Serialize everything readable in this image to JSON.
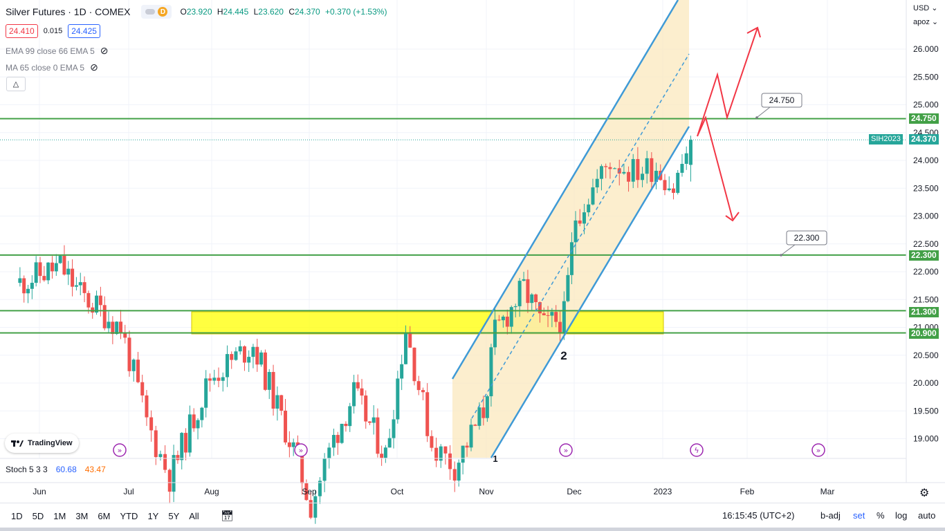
{
  "header": {
    "title": "Silver Futures · 1D · COMEX",
    "open_label": "O",
    "open": "23.920",
    "high_label": "H",
    "high": "24.445",
    "low_label": "L",
    "low": "23.620",
    "close_label": "C",
    "close": "24.370",
    "change": "+0.370 (+1.53%)",
    "pill_letter": "D",
    "bid": "24.410",
    "spread": "0.015",
    "ask": "24.425"
  },
  "indicators": {
    "ema": "EMA 99 close 66 EMA 5",
    "ma": "MA 65 close 0 EMA 5",
    "stoch_label": "Stoch 5 3 3",
    "stoch_k": "60.68",
    "stoch_d": "43.47"
  },
  "axis": {
    "currency": "USD",
    "unit": "apoz"
  },
  "tags": {
    "symbol": "SIH2023",
    "last_price": "24.370",
    "levels": [
      "24.750",
      "22.300",
      "21.300",
      "20.900"
    ]
  },
  "annotations": {
    "callout_upper": "24.750",
    "callout_lower": "22.300",
    "wave_label": "2",
    "wave_label_1": "1"
  },
  "logo_text": "TradingView",
  "toolbar": {
    "timeframes": [
      "1D",
      "5D",
      "1M",
      "3M",
      "6M",
      "YTD",
      "1Y",
      "5Y",
      "All"
    ],
    "clock": "16:15:45 (UTC+2)",
    "badj": "b-adj",
    "set": "set",
    "percent": "%",
    "log": "log",
    "auto": "auto"
  },
  "colors": {
    "up": "#26a69a",
    "down": "#ef5350",
    "level": "#43a047",
    "channel": "#3f9ad6",
    "arrow": "#f23645",
    "zone": "#ffff00"
  },
  "chart_data": {
    "type": "candlestick",
    "title": "Silver Futures · 1D · COMEX",
    "y_ticks": [
      "26.000",
      "25.500",
      "25.000",
      "24.500",
      "24.000",
      "23.500",
      "23.000",
      "22.500",
      "22.000",
      "21.500",
      "21.000",
      "20.500",
      "20.000",
      "19.500",
      "19.000"
    ],
    "x_ticks": [
      "Jun",
      "Jul",
      "Aug",
      "Sep",
      "Oct",
      "Nov",
      "Dec",
      "2023",
      "Feb",
      "Mar"
    ],
    "y_range": [
      18.6,
      26.6
    ],
    "horizontal_levels": [
      24.75,
      22.3,
      21.3,
      20.9
    ],
    "support_zone": [
      20.9,
      21.3
    ],
    "last_price": 24.37,
    "ohlc_anchors": [
      {
        "date": "2022-05-23",
        "close": 21.8
      },
      {
        "date": "2022-06-06",
        "close": 22.1
      },
      {
        "date": "2022-06-13",
        "close": 21.6
      },
      {
        "date": "2022-06-27",
        "close": 21.0
      },
      {
        "date": "2022-07-06",
        "close": 19.3
      },
      {
        "date": "2022-07-14",
        "close": 18.3
      },
      {
        "date": "2022-07-28",
        "close": 20.1
      },
      {
        "date": "2022-08-12",
        "close": 20.7
      },
      {
        "date": "2022-08-26",
        "close": 18.8
      },
      {
        "date": "2022-09-01",
        "close": 17.8
      },
      {
        "date": "2022-09-09",
        "close": 19.0
      },
      {
        "date": "2022-09-16",
        "close": 19.8
      },
      {
        "date": "2022-09-27",
        "close": 18.7
      },
      {
        "date": "2022-10-04",
        "close": 21.0
      },
      {
        "date": "2022-10-13",
        "close": 18.9
      },
      {
        "date": "2022-10-21",
        "close": 18.5
      },
      {
        "date": "2022-10-31",
        "close": 19.5
      },
      {
        "date": "2022-11-04",
        "close": 20.9
      },
      {
        "date": "2022-11-14",
        "close": 21.7
      },
      {
        "date": "2022-11-21",
        "close": 21.0
      },
      {
        "date": "2022-11-28",
        "close": 21.2
      },
      {
        "date": "2022-12-02",
        "close": 23.0
      },
      {
        "date": "2022-12-08",
        "close": 23.5
      },
      {
        "date": "2022-12-14",
        "close": 24.0
      },
      {
        "date": "2022-12-22",
        "close": 23.8
      },
      {
        "date": "2022-12-30",
        "close": 23.9
      },
      {
        "date": "2023-01-05",
        "close": 23.5
      },
      {
        "date": "2023-01-11",
        "close": 24.37
      }
    ]
  }
}
